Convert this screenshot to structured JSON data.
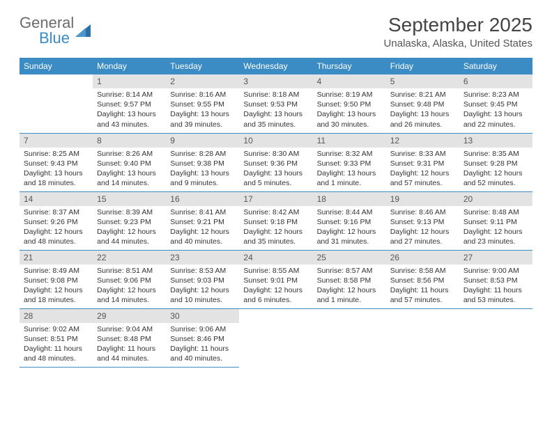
{
  "logo": {
    "general": "General",
    "blue": "Blue"
  },
  "title": "September 2025",
  "location": "Unalaska, Alaska, United States",
  "weekdays": [
    "Sunday",
    "Monday",
    "Tuesday",
    "Wednesday",
    "Thursday",
    "Friday",
    "Saturday"
  ],
  "colors": {
    "header_bg": "#3b8bc4",
    "header_text": "#ffffff",
    "daynum_bg": "#e3e3e3",
    "border": "#3b8bc4",
    "logo_gray": "#6b6b6b",
    "logo_blue": "#3b8bc4"
  },
  "font": {
    "family": "Arial",
    "title_size_pt": 21,
    "location_size_pt": 11,
    "header_size_pt": 9,
    "body_size_pt": 8
  },
  "layout": {
    "cols": 7,
    "rows": 5,
    "first_weekday_offset": 1
  },
  "days": [
    {
      "n": 1,
      "sunrise": "8:14 AM",
      "sunset": "9:57 PM",
      "daylight": "13 hours and 43 minutes."
    },
    {
      "n": 2,
      "sunrise": "8:16 AM",
      "sunset": "9:55 PM",
      "daylight": "13 hours and 39 minutes."
    },
    {
      "n": 3,
      "sunrise": "8:18 AM",
      "sunset": "9:53 PM",
      "daylight": "13 hours and 35 minutes."
    },
    {
      "n": 4,
      "sunrise": "8:19 AM",
      "sunset": "9:50 PM",
      "daylight": "13 hours and 30 minutes."
    },
    {
      "n": 5,
      "sunrise": "8:21 AM",
      "sunset": "9:48 PM",
      "daylight": "13 hours and 26 minutes."
    },
    {
      "n": 6,
      "sunrise": "8:23 AM",
      "sunset": "9:45 PM",
      "daylight": "13 hours and 22 minutes."
    },
    {
      "n": 7,
      "sunrise": "8:25 AM",
      "sunset": "9:43 PM",
      "daylight": "13 hours and 18 minutes."
    },
    {
      "n": 8,
      "sunrise": "8:26 AM",
      "sunset": "9:40 PM",
      "daylight": "13 hours and 14 minutes."
    },
    {
      "n": 9,
      "sunrise": "8:28 AM",
      "sunset": "9:38 PM",
      "daylight": "13 hours and 9 minutes."
    },
    {
      "n": 10,
      "sunrise": "8:30 AM",
      "sunset": "9:36 PM",
      "daylight": "13 hours and 5 minutes."
    },
    {
      "n": 11,
      "sunrise": "8:32 AM",
      "sunset": "9:33 PM",
      "daylight": "13 hours and 1 minute."
    },
    {
      "n": 12,
      "sunrise": "8:33 AM",
      "sunset": "9:31 PM",
      "daylight": "12 hours and 57 minutes."
    },
    {
      "n": 13,
      "sunrise": "8:35 AM",
      "sunset": "9:28 PM",
      "daylight": "12 hours and 52 minutes."
    },
    {
      "n": 14,
      "sunrise": "8:37 AM",
      "sunset": "9:26 PM",
      "daylight": "12 hours and 48 minutes."
    },
    {
      "n": 15,
      "sunrise": "8:39 AM",
      "sunset": "9:23 PM",
      "daylight": "12 hours and 44 minutes."
    },
    {
      "n": 16,
      "sunrise": "8:41 AM",
      "sunset": "9:21 PM",
      "daylight": "12 hours and 40 minutes."
    },
    {
      "n": 17,
      "sunrise": "8:42 AM",
      "sunset": "9:18 PM",
      "daylight": "12 hours and 35 minutes."
    },
    {
      "n": 18,
      "sunrise": "8:44 AM",
      "sunset": "9:16 PM",
      "daylight": "12 hours and 31 minutes."
    },
    {
      "n": 19,
      "sunrise": "8:46 AM",
      "sunset": "9:13 PM",
      "daylight": "12 hours and 27 minutes."
    },
    {
      "n": 20,
      "sunrise": "8:48 AM",
      "sunset": "9:11 PM",
      "daylight": "12 hours and 23 minutes."
    },
    {
      "n": 21,
      "sunrise": "8:49 AM",
      "sunset": "9:08 PM",
      "daylight": "12 hours and 18 minutes."
    },
    {
      "n": 22,
      "sunrise": "8:51 AM",
      "sunset": "9:06 PM",
      "daylight": "12 hours and 14 minutes."
    },
    {
      "n": 23,
      "sunrise": "8:53 AM",
      "sunset": "9:03 PM",
      "daylight": "12 hours and 10 minutes."
    },
    {
      "n": 24,
      "sunrise": "8:55 AM",
      "sunset": "9:01 PM",
      "daylight": "12 hours and 6 minutes."
    },
    {
      "n": 25,
      "sunrise": "8:57 AM",
      "sunset": "8:58 PM",
      "daylight": "12 hours and 1 minute."
    },
    {
      "n": 26,
      "sunrise": "8:58 AM",
      "sunset": "8:56 PM",
      "daylight": "11 hours and 57 minutes."
    },
    {
      "n": 27,
      "sunrise": "9:00 AM",
      "sunset": "8:53 PM",
      "daylight": "11 hours and 53 minutes."
    },
    {
      "n": 28,
      "sunrise": "9:02 AM",
      "sunset": "8:51 PM",
      "daylight": "11 hours and 48 minutes."
    },
    {
      "n": 29,
      "sunrise": "9:04 AM",
      "sunset": "8:48 PM",
      "daylight": "11 hours and 44 minutes."
    },
    {
      "n": 30,
      "sunrise": "9:06 AM",
      "sunset": "8:46 PM",
      "daylight": "11 hours and 40 minutes."
    }
  ],
  "labels": {
    "sunrise": "Sunrise:",
    "sunset": "Sunset:",
    "daylight": "Daylight:"
  }
}
